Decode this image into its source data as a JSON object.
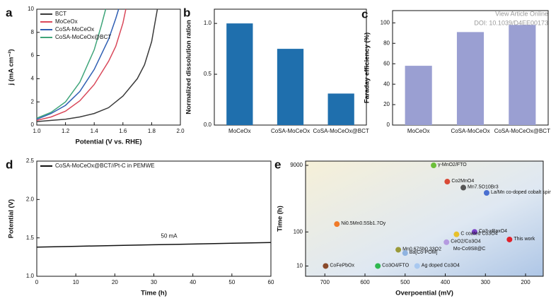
{
  "watermark": [
    "View Article Online",
    "DOI: 10.1039/D4EE00173"
  ],
  "chart_data": [
    {
      "type": "line",
      "panel_label": "a",
      "xlabel": "Potential (V vs. RHE)",
      "ylabel": "j (mA cm⁻²)",
      "xlim": [
        1.0,
        2.0
      ],
      "ylim": [
        0,
        10
      ],
      "xticks": [
        {
          "value": 1.0,
          "label": "1.0"
        },
        1.2,
        1.4,
        1.6,
        1.8,
        {
          "value": 2.0,
          "label": "2.0"
        }
      ],
      "yticks": [
        0,
        2,
        4,
        6,
        8,
        10
      ],
      "legend": "upper left",
      "series": [
        {
          "name": "BCT",
          "color": "#3a3a3a",
          "x": [
            1.0,
            1.1,
            1.2,
            1.3,
            1.4,
            1.5,
            1.6,
            1.7,
            1.75,
            1.8,
            1.84
          ],
          "values": [
            0.3,
            0.4,
            0.5,
            0.7,
            1.0,
            1.5,
            2.5,
            4.0,
            5.2,
            7.2,
            10
          ]
        },
        {
          "name": "MoCeOx",
          "color": "#d9485a",
          "x": [
            1.0,
            1.1,
            1.2,
            1.3,
            1.4,
            1.5,
            1.55,
            1.6,
            1.62
          ],
          "values": [
            0.4,
            0.7,
            1.2,
            2.1,
            3.5,
            5.5,
            6.8,
            8.8,
            10
          ]
        },
        {
          "name": "CoSA-MoCeOx",
          "color": "#2f5fb3",
          "x": [
            1.0,
            1.1,
            1.2,
            1.3,
            1.4,
            1.5,
            1.55,
            1.57
          ],
          "values": [
            0.5,
            1.0,
            1.7,
            2.9,
            4.8,
            7.4,
            9.2,
            10
          ]
        },
        {
          "name": "CoSA-MoCeOx@BCT",
          "color": "#3fa57a",
          "x": [
            1.0,
            1.1,
            1.2,
            1.3,
            1.4,
            1.45,
            1.48
          ],
          "values": [
            0.6,
            1.1,
            2.0,
            3.7,
            6.5,
            8.6,
            10
          ]
        }
      ]
    },
    {
      "type": "bar",
      "panel_label": "b",
      "ylabel": "Normalized dissolution ration",
      "categories": [
        "MoCeOx",
        "CoSA-MoCeOx",
        "CoSA-MoCeOx@BCT"
      ],
      "values": [
        1.0,
        0.75,
        0.31
      ],
      "color": "#1f6fad",
      "ylim": [
        0,
        1.14
      ],
      "yticks": [
        {
          "value": 0,
          "label": "0.0"
        },
        0.5,
        {
          "value": 1,
          "label": "1.0"
        }
      ]
    },
    {
      "type": "bar",
      "panel_label": "c",
      "ylabel": "Faraday efficiency (%)",
      "categories": [
        "MoCeOx",
        "CoSA-MoCeOx",
        "CoSA-MoCeOx@BCT"
      ],
      "values": [
        58,
        91,
        98
      ],
      "color": "#9a9fd2",
      "ylim": [
        0,
        112
      ],
      "yticks": [
        0,
        20,
        40,
        60,
        80,
        100
      ]
    },
    {
      "type": "line",
      "panel_label": "d",
      "xlabel": "Time (h)",
      "ylabel": "Potential (V)",
      "xlim": [
        0,
        60
      ],
      "ylim": [
        1.0,
        2.5
      ],
      "xticks": [
        0,
        10,
        20,
        30,
        40,
        50,
        60
      ],
      "yticks": [
        {
          "value": 1.0,
          "label": "1.0"
        },
        1.5,
        {
          "value": 2.0,
          "label": "2.0"
        },
        2.5
      ],
      "legend": "upper left",
      "annotation": "50 mA",
      "series": [
        {
          "name": "CoSA-MoCeOx@BCT//Pt-C in PEMWE",
          "color": "#111111",
          "x": [
            0,
            10,
            20,
            30,
            40,
            50,
            60
          ],
          "values": [
            1.38,
            1.39,
            1.4,
            1.41,
            1.42,
            1.43,
            1.44
          ]
        }
      ]
    },
    {
      "type": "scatter",
      "panel_label": "e",
      "xlabel": "Overpoential  (mV)",
      "ylabel": "Time (h)",
      "xlim": [
        748,
        156
      ],
      "ylim": [
        5,
        12000
      ],
      "ylog": true,
      "xticks": [
        700,
        600,
        500,
        400,
        300,
        200
      ],
      "yticks": [
        10,
        100,
        9000
      ],
      "annotation": "Mo-Co9S8@C",
      "labels": [
        "γ-MnO2/FTO",
        "Co2MnO4",
        "Mn7.5O10Br3",
        "La/Mn co-doped cobalt spinel",
        "Ni0.5Mn0.5Sb1.7Oy",
        "Co3-xBaxO4",
        "C coated Co3O4",
        "This work",
        "CeO2/Co3O4",
        "Mn0.67Sb0.33O2",
        "Ba[Co-POM]",
        "CoFePbOx",
        "Co3O4/FTO",
        "Ag doped Co3O4"
      ],
      "x": [
        429,
        395,
        355,
        297,
        670,
        327,
        372,
        240,
        397,
        517,
        500,
        698,
        568,
        470
      ],
      "values": [
        9000,
        3000,
        2000,
        1400,
        170,
        100,
        85,
        60,
        50,
        30,
        24,
        10,
        10,
        10
      ],
      "colors": [
        "#6cbf3a",
        "#d94a36",
        "#555555",
        "#4a6fd0",
        "#f07a28",
        "#7a3fc8",
        "#e8c02a",
        "#e0202a",
        "#b59be0",
        "#9a9a3a",
        "#8fb3e0",
        "#8a4a2a",
        "#2fb84f",
        "#a8c8f0"
      ]
    }
  ]
}
